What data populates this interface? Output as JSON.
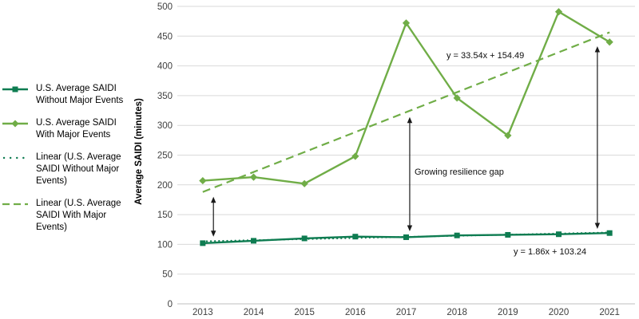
{
  "colors": {
    "dark_green": "#0E7C51",
    "light_green": "#70AD47",
    "gridline": "#D9D9D9",
    "axis_line": "#BFBFBF",
    "tick_text": "#404040",
    "arrow": "#1a1a1a"
  },
  "legend": {
    "items": [
      {
        "label": "U.S. Average SAIDI Without Major Events"
      },
      {
        "label": "U.S. Average SAIDI With Major Events"
      },
      {
        "label": "Linear (U.S. Average SAIDI Without Major Events)"
      },
      {
        "label": "Linear (U.S. Average SAIDI With Major Events)"
      }
    ]
  },
  "chart_data": {
    "type": "line",
    "title": "",
    "xlabel": "",
    "ylabel": "Average SAIDI (minutes)",
    "ylim": [
      0,
      500
    ],
    "ytick_step": 50,
    "grid": true,
    "legend_position": "left",
    "categories": [
      "2013",
      "2014",
      "2015",
      "2016",
      "2017",
      "2018",
      "2019",
      "2020",
      "2021"
    ],
    "series": [
      {
        "name": "U.S. Average SAIDI Without Major Events",
        "color_key": "dark_green",
        "marker": "square",
        "line_style": "solid",
        "values": [
          102,
          106,
          110,
          113,
          112,
          115,
          116,
          117,
          119
        ]
      },
      {
        "name": "U.S. Average SAIDI With Major Events",
        "color_key": "light_green",
        "marker": "diamond",
        "line_style": "solid",
        "values": [
          207,
          213,
          202,
          248,
          472,
          346,
          283,
          491,
          440
        ]
      }
    ],
    "trendlines": [
      {
        "name": "Linear (U.S. Average SAIDI Without Major Events)",
        "equation": "y = 1.86x + 103.24",
        "slope": 1.86,
        "intercept": 103.24,
        "color_key": "dark_green",
        "dash": "dotted"
      },
      {
        "name": "Linear (U.S. Average SAIDI With Major Events)",
        "equation": "y = 33.54x + 154.49",
        "slope": 33.54,
        "intercept": 154.49,
        "color_key": "light_green",
        "dash": "dashed"
      }
    ],
    "annotations": {
      "gap_label": "Growing resilience gap",
      "trend_with_equation": "y = 33.54x + 154.49",
      "trend_without_equation": "y = 1.86x + 103.24",
      "arrows": [
        {
          "x_index": 0.21,
          "value_from": 180,
          "value_to": 113
        },
        {
          "x_index": 4.07,
          "value_from": 314,
          "value_to": 122
        },
        {
          "x_index": 7.76,
          "value_from": 433,
          "value_to": 126
        }
      ]
    }
  }
}
